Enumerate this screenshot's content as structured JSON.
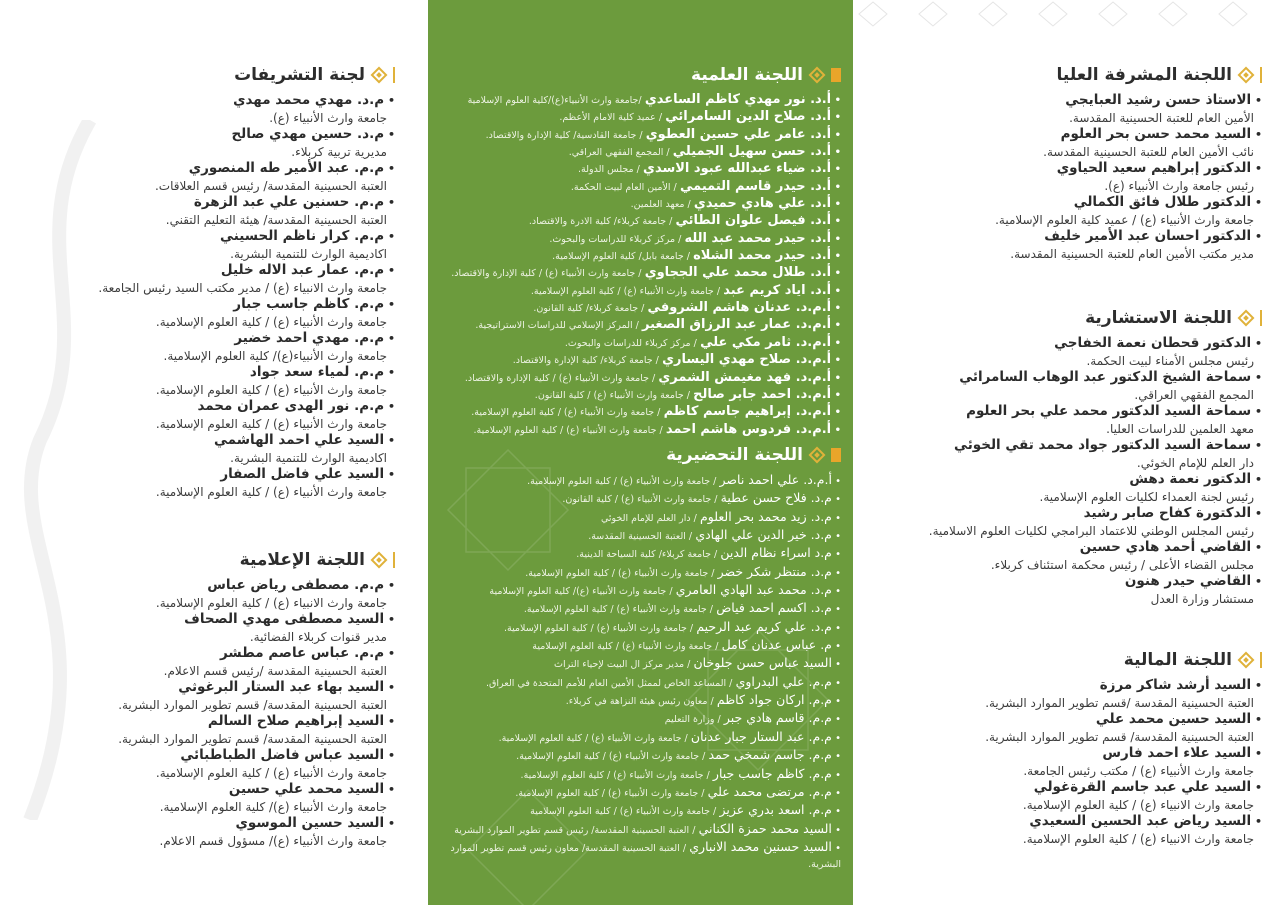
{
  "colors": {
    "green_panel": "#6c9b3d",
    "accent_gold": "#e0b23a",
    "accent_orange": "#e9a52a"
  },
  "right": [
    {
      "title": "اللجنة المشرفة العليا",
      "items": [
        {
          "name": "الاستاذ حسن رشيد العبايجي",
          "sub": "الأمين العام للعتبة الحسينية المقدسة."
        },
        {
          "name": "السيد محمد حسن بحر العلوم",
          "sub": "نائب الأمين العام للعتبة الحسينية المقدسة."
        },
        {
          "name": "الدكتور إبراهيم سعيد الحياوي",
          "sub": "رئيس جامعة وارث الأنبياء (ع)."
        },
        {
          "name": "الدكتور طلال فائق الكمالي",
          "sub": "جامعة وارث الأنبياء (ع) / عميد كلية العلوم الإسلامية."
        },
        {
          "name": "الدكتور احسان عبد الأمير خليف",
          "sub": "مدير مكتب الأمين العام للعتبة الحسينية المقدسة."
        }
      ]
    },
    {
      "title": "اللجنة الاستشارية",
      "items": [
        {
          "name": "الدكتور قحطان نعمة الخفاجي",
          "sub": "رئيس مجلس الأمناء لبيت الحكمة."
        },
        {
          "name": "سماحة الشيخ الدكتور عبد الوهاب السامرائي",
          "sub": "المجمع الفقهي العراقي."
        },
        {
          "name": "سماحة السيد الدكتور محمد علي بحر العلوم",
          "sub": "معهد العلمين للدراسات العليا."
        },
        {
          "name": "سماحة السيد الدكتور جواد محمد تقي الخوئي",
          "sub": "دار العلم للإمام الخوئي."
        },
        {
          "name": "الدكتور نعمة دهش",
          "sub": "رئيس لجنة العمداء لكليات العلوم الإسلامية."
        },
        {
          "name": "الدكتورة كفاح صابر رشيد",
          "sub": "رئيس المجلس الوطني للاعتماد البرامجي لكليات العلوم الاسلامية."
        },
        {
          "name": "القاضي أحمد هادي حسين",
          "sub": "مجلس القضاء الأعلى / رئيس محكمة استئناف كربلاء."
        },
        {
          "name": "القاضي حيدر هنون",
          "sub": "مستشار وزارة العدل"
        }
      ]
    },
    {
      "title": "اللجنة المالية",
      "items": [
        {
          "name": "السيد أرشد شاكر مرزة",
          "sub": "العتبة الحسينية المقدسة /قسم تطوير الموارد البشرية."
        },
        {
          "name": "السيد حسين محمد علي",
          "sub": "العتبة الحسينية المقدسة/ قسم تطوير الموارد البشرية."
        },
        {
          "name": "السيد علاء احمد فارس",
          "sub": "جامعة وارث الأنبياء (ع) / مكتب رئيس الجامعة."
        },
        {
          "name": "السيد علي عبد جاسم القرةغولي",
          "sub": "جامعة وارث الانبياء (ع) / كلية العلوم الإسلامية."
        },
        {
          "name": "السيد رياض عبد الحسين السعيدي",
          "sub": "جامعة وارث الانبياء (ع) / كلية العلوم الإسلامية."
        }
      ]
    }
  ],
  "middle": [
    {
      "title": "اللجنة العلمية",
      "items": [
        {
          "name": "أ.د. نور مهدي كاظم الساعدي",
          "sub": "/جامعة وارث الأنبياء(ع)/كلية العلوم الإسلامية"
        },
        {
          "name": "أ.د. صلاح الدين السامرائي",
          "sub": "/ عميد كلية الامام الأعظم."
        },
        {
          "name": "أ.د. عامر علي حسين العطوي",
          "sub": "/ جامعة القادسية/ كلية الإدارة والاقتصاد."
        },
        {
          "name": "أ.د. حسن سهيل الجميلي",
          "sub": "/ المجمع الفقهي العراقي."
        },
        {
          "name": "أ.د. ضياء عبدالله عبود الاسدي",
          "sub": "/ مجلس الدولة."
        },
        {
          "name": "أ.د. حيدر قاسم التميمي",
          "sub": "/ الأمين العام لبيت الحكمة."
        },
        {
          "name": "أ.د. علي هادي حميدي",
          "sub": "/ معهد العلمين."
        },
        {
          "name": "أ.د. فيصل علوان الطائي",
          "sub": "/ جامعة كربلاء/ كلية الادرة والاقتصاد."
        },
        {
          "name": "أ.د. حيدر محمد عبد الله",
          "sub": "/ مركز كربلاء للدراسات والبحوث."
        },
        {
          "name": "أ.د. حيدر محمد الشلاه",
          "sub": "/ جامعة بابل/ كلية العلوم الإسلامية."
        },
        {
          "name": "أ.د. طلال محمد علي الججاوي",
          "sub": "/ جامعة وارث الأنبياء (ع) / كلية الإدارة والاقتصاد."
        },
        {
          "name": "أ.د. اياد كريم عبد",
          "sub": "/ جامعة وارث الأنبياء (ع) / كلية العلوم الإسلامية."
        },
        {
          "name": "أ.م.د. عدنان هاشم الشروفي",
          "sub": "/ جامعة كربلاء/ كلية القانون."
        },
        {
          "name": "أ.م.د. عمار عبد الرزاق الصغير",
          "sub": "/ المركز الإسلامي للدراسات الاستراتيجية."
        },
        {
          "name": "أ.م.د. ثامر مكي علي",
          "sub": "/ مركز كربلاء للدراسات والبحوث."
        },
        {
          "name": "أ.م.د. صلاح مهدي اليساري",
          "sub": "/ جامعة كربلاء/ كلية الإدارة والاقتصاد."
        },
        {
          "name": "أ.م.د. فهد مغيمش الشمري",
          "sub": "/ جامعة وارث الأنبياء (ع) / كلية الإدارة والاقتصاد."
        },
        {
          "name": "أ.م.د. احمد جابر صالح",
          "sub": "/ جامعة وارث الأنبياء (ع) / كلية القانون."
        },
        {
          "name": "أ.م.د. إبراهيم جاسم كاظم",
          "sub": "/ جامعة وارث الأنبياء (ع) / كلية العلوم الإسلامية."
        },
        {
          "name": "أ.م.د. فردوس هاشم احمد",
          "sub": "/ جامعة وارث الأنبياء (ع) / كلية العلوم الإسلامية."
        }
      ]
    },
    {
      "title": "اللجنة التحضيرية",
      "items": [
        {
          "name": "أ.م.د. علي احمد ناصر",
          "sub": "/ جامعة وارث الأنبياء (ع) / كلية العلوم الإسلامية."
        },
        {
          "name": "م.د. فلاح حسن عطية",
          "sub": "/ جامعة وارث الأنبياء (ع) / كلية القانون."
        },
        {
          "name": "م.د. زيد محمد بحر العلوم",
          "sub": "/ دار العلم للإمام الخوئي"
        },
        {
          "name": "م.د. خير الدين علي الهادي",
          "sub": "/ العتبة الحسينية المقدسة."
        },
        {
          "name": "م.د اسراء نظام الدين",
          "sub": "/ جامعة كربلاء/ كلية السياحة الدينية."
        },
        {
          "name": "م.د. منتظر شكر خضر",
          "sub": "/ جامعة وارث الأنبياء (ع) / كلية العلوم الإسلامية."
        },
        {
          "name": "م.د. محمد عبد الهادي العامري",
          "sub": "/ جامعة وارث الأنبياء (ع)/ كلية العلوم الإسلامية"
        },
        {
          "name": "م.د. اكسم احمد فياض",
          "sub": "/ جامعة وارث الأنبياء (ع) / كلية العلوم الإسلامية."
        },
        {
          "name": "م.د. علي كريم عبد الرحيم",
          "sub": "/ جامعة وارث الأنبياء (ع) / كلية العلوم الإسلامية."
        },
        {
          "name": "م. عباس عدنان كامل",
          "sub": "/ جامعة وارث الأنبياء (ع) / كلية العلوم الإسلامية"
        },
        {
          "name": "السيد عباس حسن جلوخان",
          "sub": "/ مدير مركز ال البيت لإحياء التراث"
        },
        {
          "name": "م.م. علي البدراوي",
          "sub": "/ المساعد الخاص لممثل الأمين العام للأمم المتحدة في العراق."
        },
        {
          "name": "م.م. اركان جواد كاظم",
          "sub": "/ معاون رئيس هيئة النزاهة في كربلاء."
        },
        {
          "name": "م.م. قاسم هادي جبر",
          "sub": "/ وزارة التعليم"
        },
        {
          "name": "م.م. عبد الستار جبار عدنان",
          "sub": "/ جامعة وارث الأنبياء (ع) / كلية العلوم الإسلامية."
        },
        {
          "name": "م.م. جاسم شمخي حمد",
          "sub": "/ جامعة وارث الأنبياء (ع) / كلية العلوم الإسلامية."
        },
        {
          "name": "م.م. كاظم جاسب جبار",
          "sub": "/ جامعة وارث الأنبياء (ع) / كلية العلوم الإسلامية."
        },
        {
          "name": "م.م. مرتضى محمد علي",
          "sub": "/ جامعة وارث الأنبياء (ع) / كلية العلوم الإسلامية."
        },
        {
          "name": "م.م. اسعد بدري عزيز",
          "sub": "/ جامعة وارث الأنبياء (ع) / كلية العلوم الإسلامية"
        },
        {
          "name": "السيد محمد حمزة الكناني",
          "sub": "/ العتبة الحسينية المقدسة/ رئيس قسم تطوير الموارد البشرية"
        },
        {
          "name": "السيد حسنين محمد الانباري",
          "sub": "/ العتبة الحسينية المقدسة/ معاون رئيس قسم تطوير الموارد البشرية."
        }
      ]
    }
  ],
  "left": [
    {
      "title": "لجنة التشريفات",
      "items": [
        {
          "name": "م.د. مهدي محمد مهدي",
          "sub": "جامعة وارث الأنبياء (ع)."
        },
        {
          "name": "م.د. حسين مهدي صالح",
          "sub": "مديرية تربية كربلاء."
        },
        {
          "name": "م.م. عبد الأمير طه المنصوري",
          "sub": "العتبة الحسينية المقدسة/ رئيس قسم العلاقات."
        },
        {
          "name": "م.م. حسنين علي عبد الزهرة",
          "sub": "العتبة الحسينية المقدسة/ هيئة التعليم التقني."
        },
        {
          "name": "م.م. كرار ناظم الحسيني",
          "sub": "اكاديمية الوارث للتنمية البشرية."
        },
        {
          "name": "م.م. عمار عبد الاله خليل",
          "sub": "جامعة وارث الانبياء (ع) / مدير مكتب السيد رئيس الجامعة."
        },
        {
          "name": "م.م. كاظم جاسب جبار",
          "sub": "جامعة وارث الأنبياء (ع) / كلية العلوم الإسلامية."
        },
        {
          "name": "م.م. مهدي احمد خضير",
          "sub": "جامعة وارث الأنبياء(ع)/ كلية العلوم الإسلامية."
        },
        {
          "name": "م.م. لمياء سعد جواد",
          "sub": "جامعة وارث الأنبياء (ع) / كلية العلوم الإسلامية."
        },
        {
          "name": "م.م. نور الهدى عمران محمد",
          "sub": "جامعة وارث الأنبياء (ع) / كلية العلوم الإسلامية."
        },
        {
          "name": "السيد علي احمد الهاشمي",
          "sub": "اكاديمية الوارث للتنمية البشرية."
        },
        {
          "name": "السيد علي فاضل الصفار",
          "sub": "جامعة وارث الأنبياء (ع) / كلية العلوم الإسلامية."
        }
      ]
    },
    {
      "title": "اللجنة الإعلامية",
      "items": [
        {
          "name": "م.م. مصطفى رياض عباس",
          "sub": "جامعة وارث الانبياء (ع) / كلية العلوم الإسلامية."
        },
        {
          "name": "السيد مصطفى مهدي الصحاف",
          "sub": "مدير قنوات كربلاء الفضائية."
        },
        {
          "name": "م.م. عباس عاصم مطشر",
          "sub": "العتبة الحسينية المقدسة /رئيس قسم الاعلام."
        },
        {
          "name": "السيد بهاء عبد الستار البرغوثي",
          "sub": "العتبة الحسينية المقدسة/ قسم تطوير الموارد البشرية."
        },
        {
          "name": "السيد إبراهيم صلاح السالم",
          "sub": "العتبة الحسينية المقدسة/ قسم تطوير الموارد البشرية."
        },
        {
          "name": "السيد عباس فاضل الطباطبائي",
          "sub": "جامعة وارث الأنبياء (ع) / كلية العلوم الإسلامية."
        },
        {
          "name": "السيد محمد علي حسين",
          "sub": "جامعة وارث الأنبياء (ع)/ كلية العلوم الإسلامية."
        },
        {
          "name": "السيد حسين الموسوي",
          "sub": "جامعة وارث الأنبياء (ع)/ مسؤول قسم الاعلام."
        }
      ]
    }
  ]
}
